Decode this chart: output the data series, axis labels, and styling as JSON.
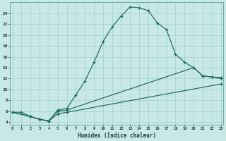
{
  "xlabel": "Humidex (Indice chaleur)",
  "bg_color": "#c8e8e4",
  "grid_color": "#a8d4d0",
  "line_color": "#1a6b5a",
  "curve1_x": [
    0,
    1,
    2,
    3,
    4,
    5,
    6,
    7,
    8,
    9,
    10,
    11,
    12,
    13,
    14,
    15,
    16,
    17,
    18,
    19,
    20,
    21,
    22,
    23
  ],
  "curve1_y": [
    5.8,
    5.8,
    5.0,
    4.5,
    4.2,
    6.2,
    6.5,
    9.0,
    11.5,
    15.0,
    18.8,
    21.5,
    23.5,
    25.2,
    25.0,
    24.5,
    22.2,
    21.0,
    16.5,
    15.0,
    14.0,
    12.5,
    12.3,
    12.0
  ],
  "curve2_x": [
    0,
    2,
    3,
    4,
    5,
    6,
    20,
    21,
    22,
    23
  ],
  "curve2_y": [
    5.8,
    5.0,
    4.5,
    4.2,
    6.0,
    6.2,
    14.0,
    12.5,
    12.3,
    12.2
  ],
  "curve3_x": [
    0,
    2,
    3,
    4,
    5,
    6,
    23
  ],
  "curve3_y": [
    5.8,
    5.0,
    4.5,
    4.2,
    5.5,
    5.8,
    11.0
  ],
  "xlim": [
    -0.3,
    23.3
  ],
  "ylim": [
    3.5,
    26.0
  ],
  "yticks": [
    4,
    6,
    8,
    10,
    12,
    14,
    16,
    18,
    20,
    22,
    24
  ],
  "xticks": [
    0,
    1,
    2,
    3,
    4,
    5,
    6,
    7,
    8,
    9,
    10,
    11,
    12,
    13,
    14,
    15,
    16,
    17,
    18,
    19,
    20,
    21,
    22,
    23
  ]
}
